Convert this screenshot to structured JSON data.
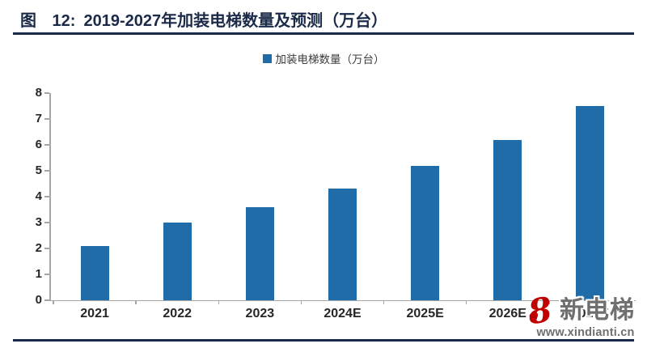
{
  "header": {
    "figure_label": "图 12:",
    "title": "2019-2027年加装电梯数量及预测（万台）"
  },
  "legend": {
    "label": "加装电梯数量（万台）"
  },
  "chart_data": {
    "type": "bar",
    "title": "2019-2027年加装电梯数量及预测（万台）",
    "categories": [
      "2021",
      "2022",
      "2023",
      "2024E",
      "2025E",
      "2026E",
      "2027E"
    ],
    "series": [
      {
        "name": "加装电梯数量（万台）",
        "values": [
          2.1,
          3.0,
          3.6,
          4.3,
          5.2,
          6.2,
          7.5
        ]
      }
    ],
    "xlabel": "",
    "ylabel": "",
    "ylim": [
      0,
      8
    ],
    "yticks": [
      0,
      1,
      2,
      3,
      4,
      5,
      6,
      7,
      8
    ],
    "grid": false,
    "legend_position": "top-center",
    "bar_color": "#1f6ca8"
  },
  "watermark": {
    "glyph": "8",
    "heart_glyph": "♥",
    "brand": "新电梯",
    "url": "www.xindianti.cn"
  },
  "colors": {
    "bar": "#1f6ca8",
    "title_navy": "#1b2a48",
    "axis_gray": "#a6a6a6",
    "tick_label": "#262626",
    "legend_text": "#3c3c3c",
    "logo_red": "#c00000",
    "logo_gray": "#6f6f6f"
  }
}
